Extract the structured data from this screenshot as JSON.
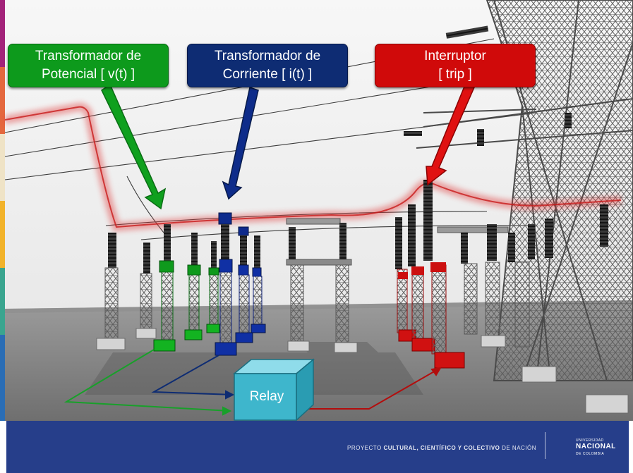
{
  "labels": {
    "voltage_transformer": {
      "line1": "Transformador de",
      "line2": "Potencial [ v(t) ]"
    },
    "current_transformer": {
      "line1": "Transformador de",
      "line2": "Corriente [ i(t) ]"
    },
    "breaker": {
      "line1": "Interruptor",
      "line2": "[ trip ]"
    }
  },
  "relay": {
    "label": "Relay"
  },
  "footer": {
    "text_plain1": "PROYECTO ",
    "text_bold": "CULTURAL, CIENTÍFICO Y COLECTIVO",
    "text_plain2": " DE NACIÓN",
    "logo_top": "UNIVERSIDAD",
    "logo_main": "NACIONAL",
    "logo_bottom": "DE COLOMBIA"
  },
  "colors": {
    "voltage": "#0d9a1c",
    "current": "#0e2c73",
    "trip": "#d00a0a",
    "relay": "#3eb6cc",
    "footer": "#263e8a",
    "fault_glow": "#d63a3a"
  },
  "icons": {
    "logo": "escudo-unal-icon"
  }
}
